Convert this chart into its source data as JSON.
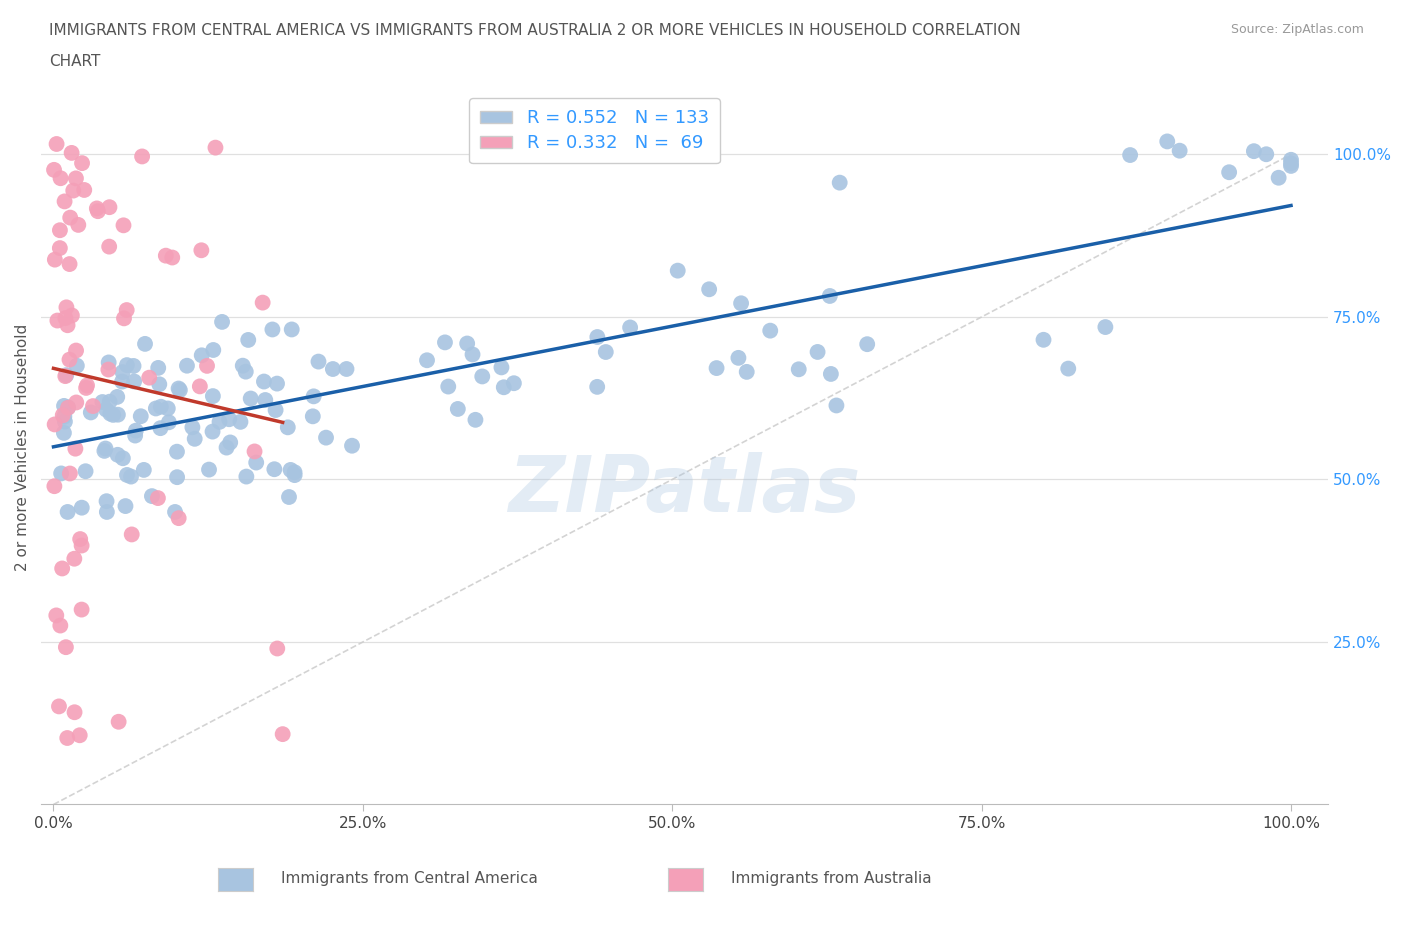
{
  "title_line1": "IMMIGRANTS FROM CENTRAL AMERICA VS IMMIGRANTS FROM AUSTRALIA 2 OR MORE VEHICLES IN HOUSEHOLD CORRELATION",
  "title_line2": "CHART",
  "source": "Source: ZipAtlas.com",
  "legend_blue_R": "0.552",
  "legend_blue_N": "133",
  "legend_pink_R": "0.332",
  "legend_pink_N": " 69",
  "ylabel": "2 or more Vehicles in Household",
  "legend_label_blue": "Immigrants from Central America",
  "legend_label_pink": "Immigrants from Australia",
  "x_ticks": [
    "0.0%",
    "25.0%",
    "50.0%",
    "75.0%",
    "100.0%"
  ],
  "x_tick_vals": [
    0.0,
    25.0,
    50.0,
    75.0,
    100.0
  ],
  "y_ticks": [
    "25.0%",
    "50.0%",
    "75.0%",
    "100.0%"
  ],
  "y_tick_vals": [
    25.0,
    50.0,
    75.0,
    100.0
  ],
  "blue_color": "#a8c4e0",
  "blue_line_color": "#1a5fa8",
  "pink_color": "#f4a0b8",
  "pink_line_color": "#c0392b",
  "diagonal_color": "#cccccc",
  "watermark": "ZIPatlas",
  "background_color": "#ffffff",
  "grid_color": "#e0e0e0"
}
